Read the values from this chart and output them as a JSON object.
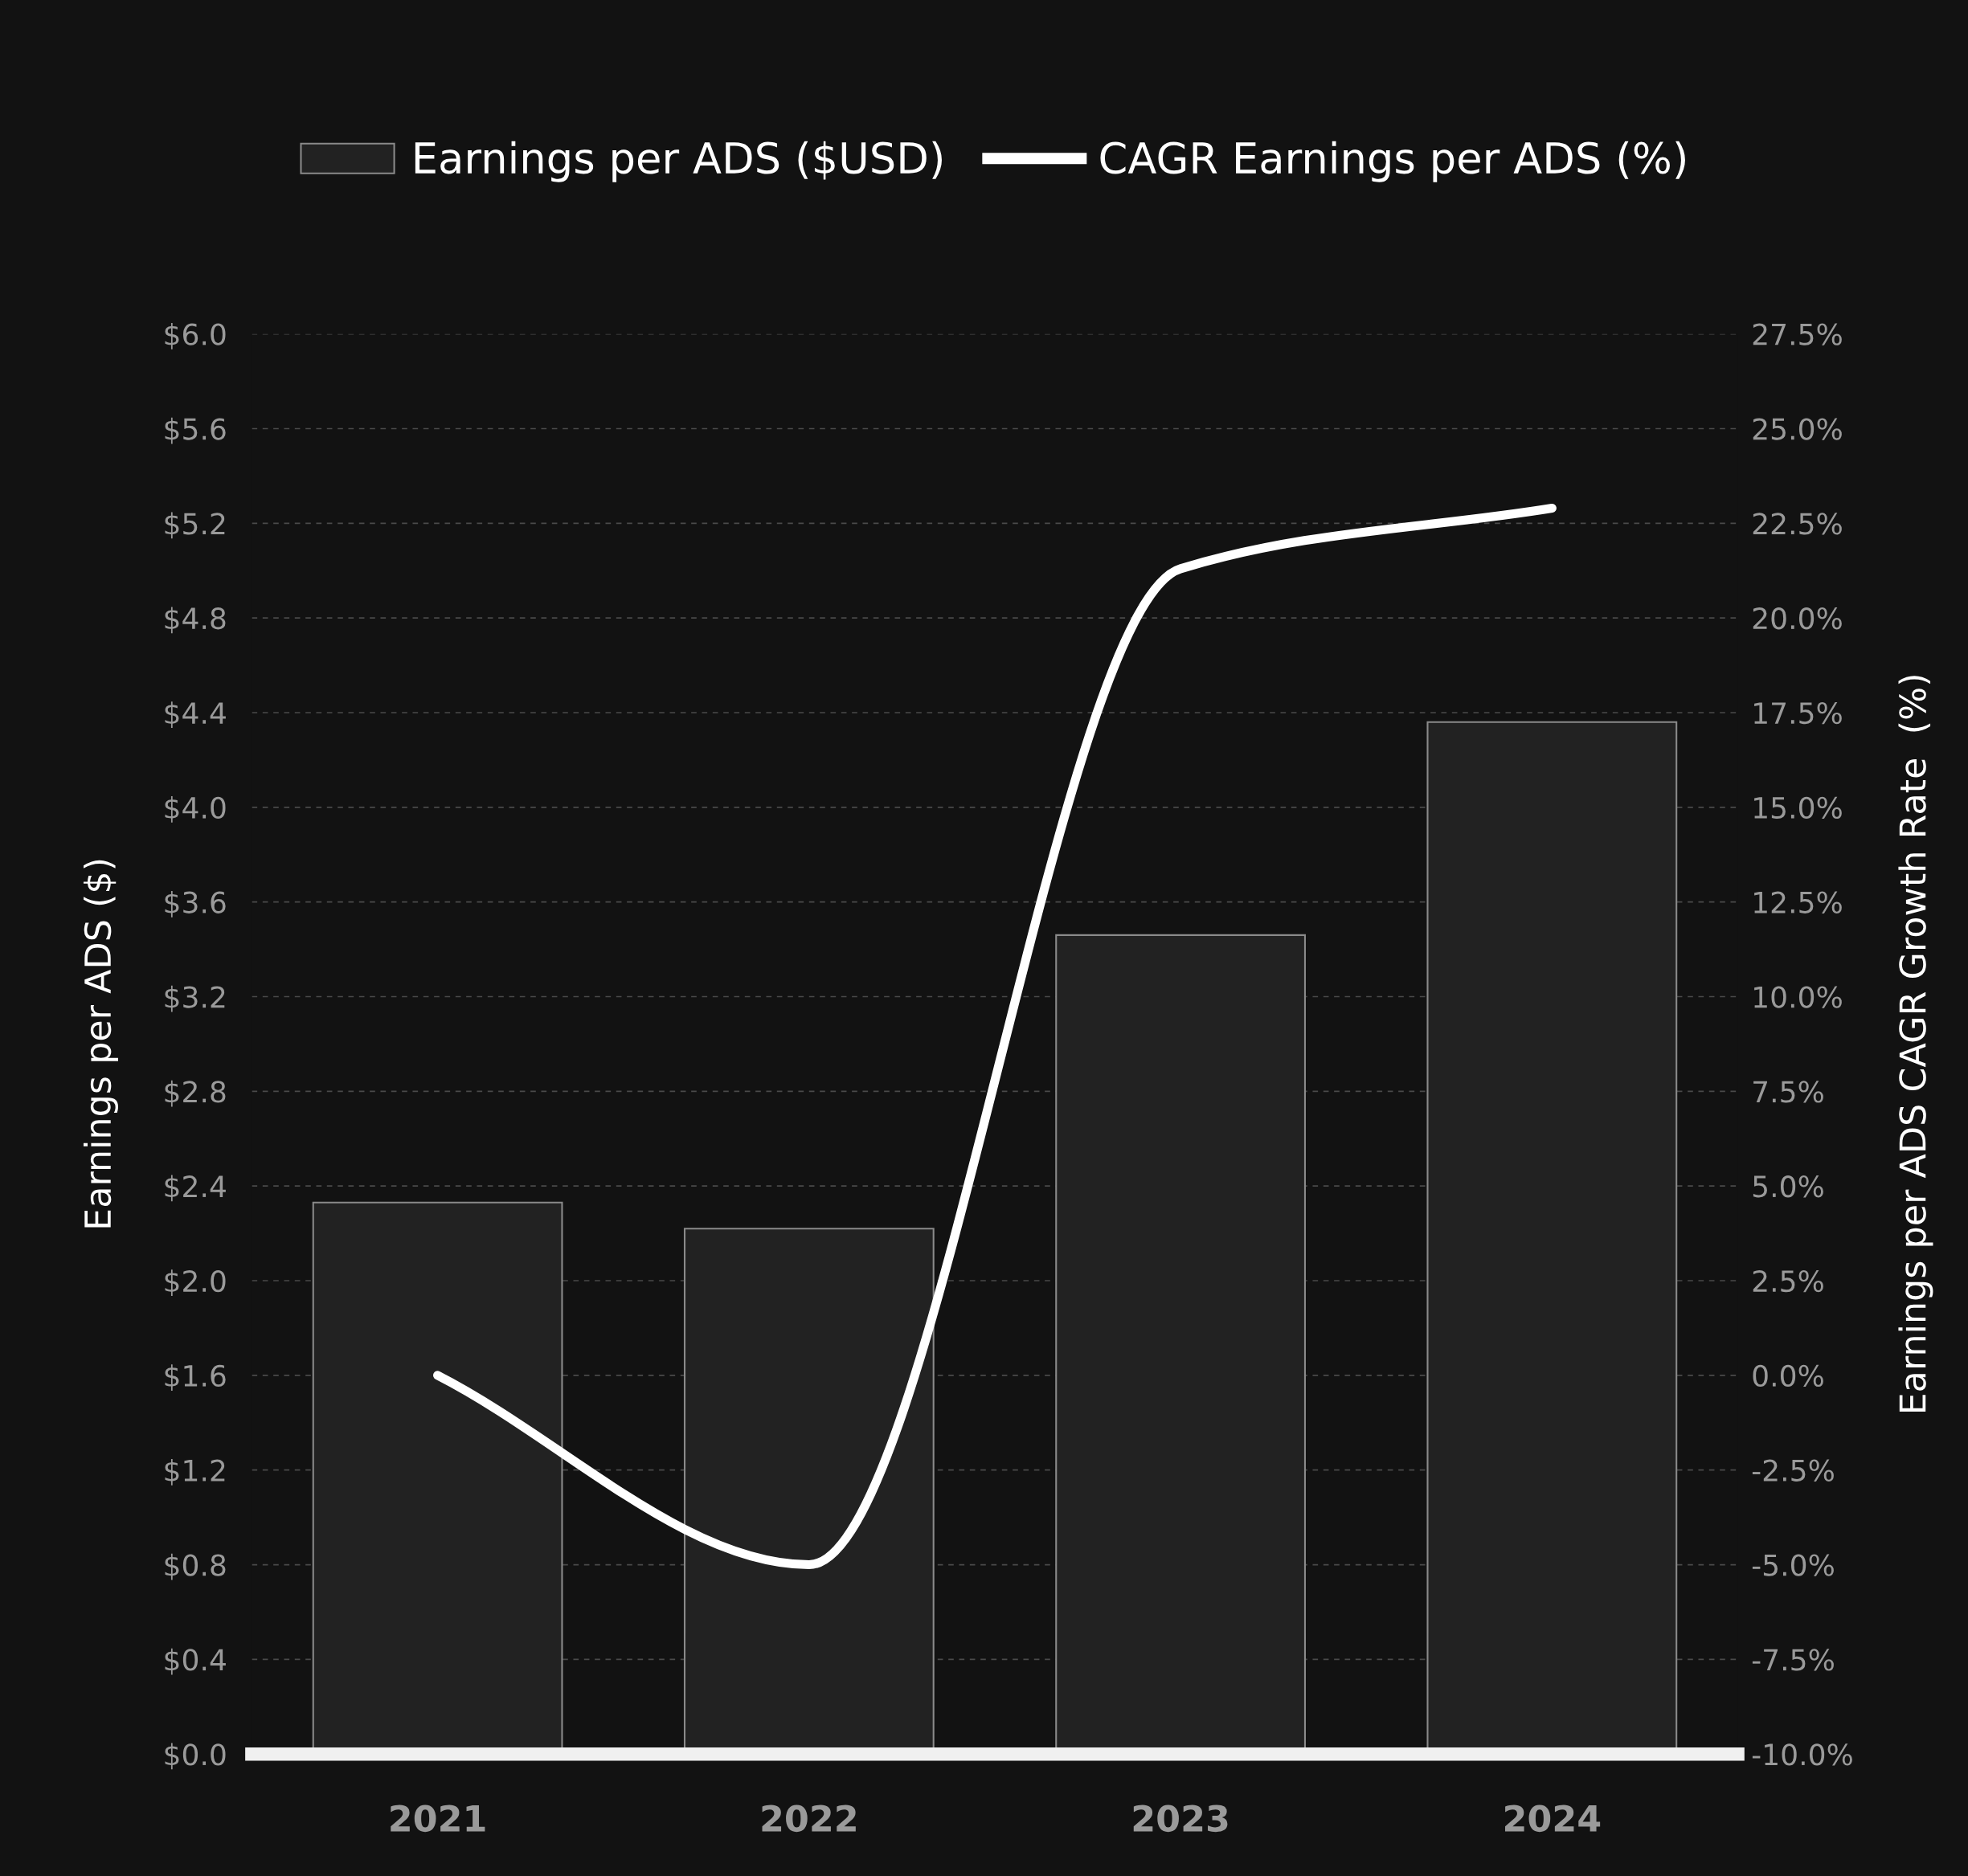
{
  "chart_data": {
    "type": "bar",
    "categories": [
      "2021",
      "2022",
      "2023",
      "2024"
    ],
    "series": [
      {
        "name": "Earnings per ADS ($USD)",
        "color": "#222222",
        "values": [
          2.33,
          2.22,
          3.46,
          4.36
        ]
      },
      {
        "name": "CAGR Earnings per ADS (%)",
        "type": "line",
        "axis": "y2",
        "color": "#ffffff",
        "values": [
          0.0,
          -5.0,
          21.3,
          22.9
        ]
      }
    ],
    "ylabel": "Earnings per ADS ($)",
    "y2label": "Earnings per ADS CAGR Growth Rate  (%)",
    "ylim": [
      0,
      6
    ],
    "yticks": [
      {
        "value": 0,
        "label": "$0.0"
      },
      {
        "value": 0.4,
        "label": "$0.4"
      },
      {
        "value": 0.8,
        "label": "$0.8"
      },
      {
        "value": 1.2,
        "label": "$1.2"
      },
      {
        "value": 1.6,
        "label": "$1.6"
      },
      {
        "value": 2.0,
        "label": "$2.0"
      },
      {
        "value": 2.4,
        "label": "$2.4"
      },
      {
        "value": 2.8,
        "label": "$2.8"
      },
      {
        "value": 3.2,
        "label": "$3.2"
      },
      {
        "value": 3.6,
        "label": "$3.6"
      },
      {
        "value": 4.0,
        "label": "$4.0"
      },
      {
        "value": 4.4,
        "label": "$4.4"
      },
      {
        "value": 4.8,
        "label": "$4.8"
      },
      {
        "value": 5.2,
        "label": "$5.2"
      },
      {
        "value": 5.6,
        "label": "$5.6"
      },
      {
        "value": 6.0,
        "label": "$6.0"
      }
    ],
    "y2lim": [
      -10,
      27.5
    ],
    "y2ticks": [
      {
        "value": -10,
        "label": "-10.0%"
      },
      {
        "value": -7.5,
        "label": "-7.5%"
      },
      {
        "value": -5,
        "label": "-5.0%"
      },
      {
        "value": -2.5,
        "label": "-2.5%"
      },
      {
        "value": 0,
        "label": "0.0%"
      },
      {
        "value": 2.5,
        "label": "2.5%"
      },
      {
        "value": 5,
        "label": "5.0%"
      },
      {
        "value": 7.5,
        "label": "7.5%"
      },
      {
        "value": 10,
        "label": "10.0%"
      },
      {
        "value": 12.5,
        "label": "12.5%"
      },
      {
        "value": 15,
        "label": "15.0%"
      },
      {
        "value": 17.5,
        "label": "17.5%"
      },
      {
        "value": 20,
        "label": "20.0%"
      },
      {
        "value": 22.5,
        "label": "22.5%"
      },
      {
        "value": 25,
        "label": "25.0%"
      },
      {
        "value": 27.5,
        "label": "27.5%"
      }
    ],
    "grid": "y",
    "legend": "top",
    "line_style": "solid",
    "marker": "none"
  }
}
